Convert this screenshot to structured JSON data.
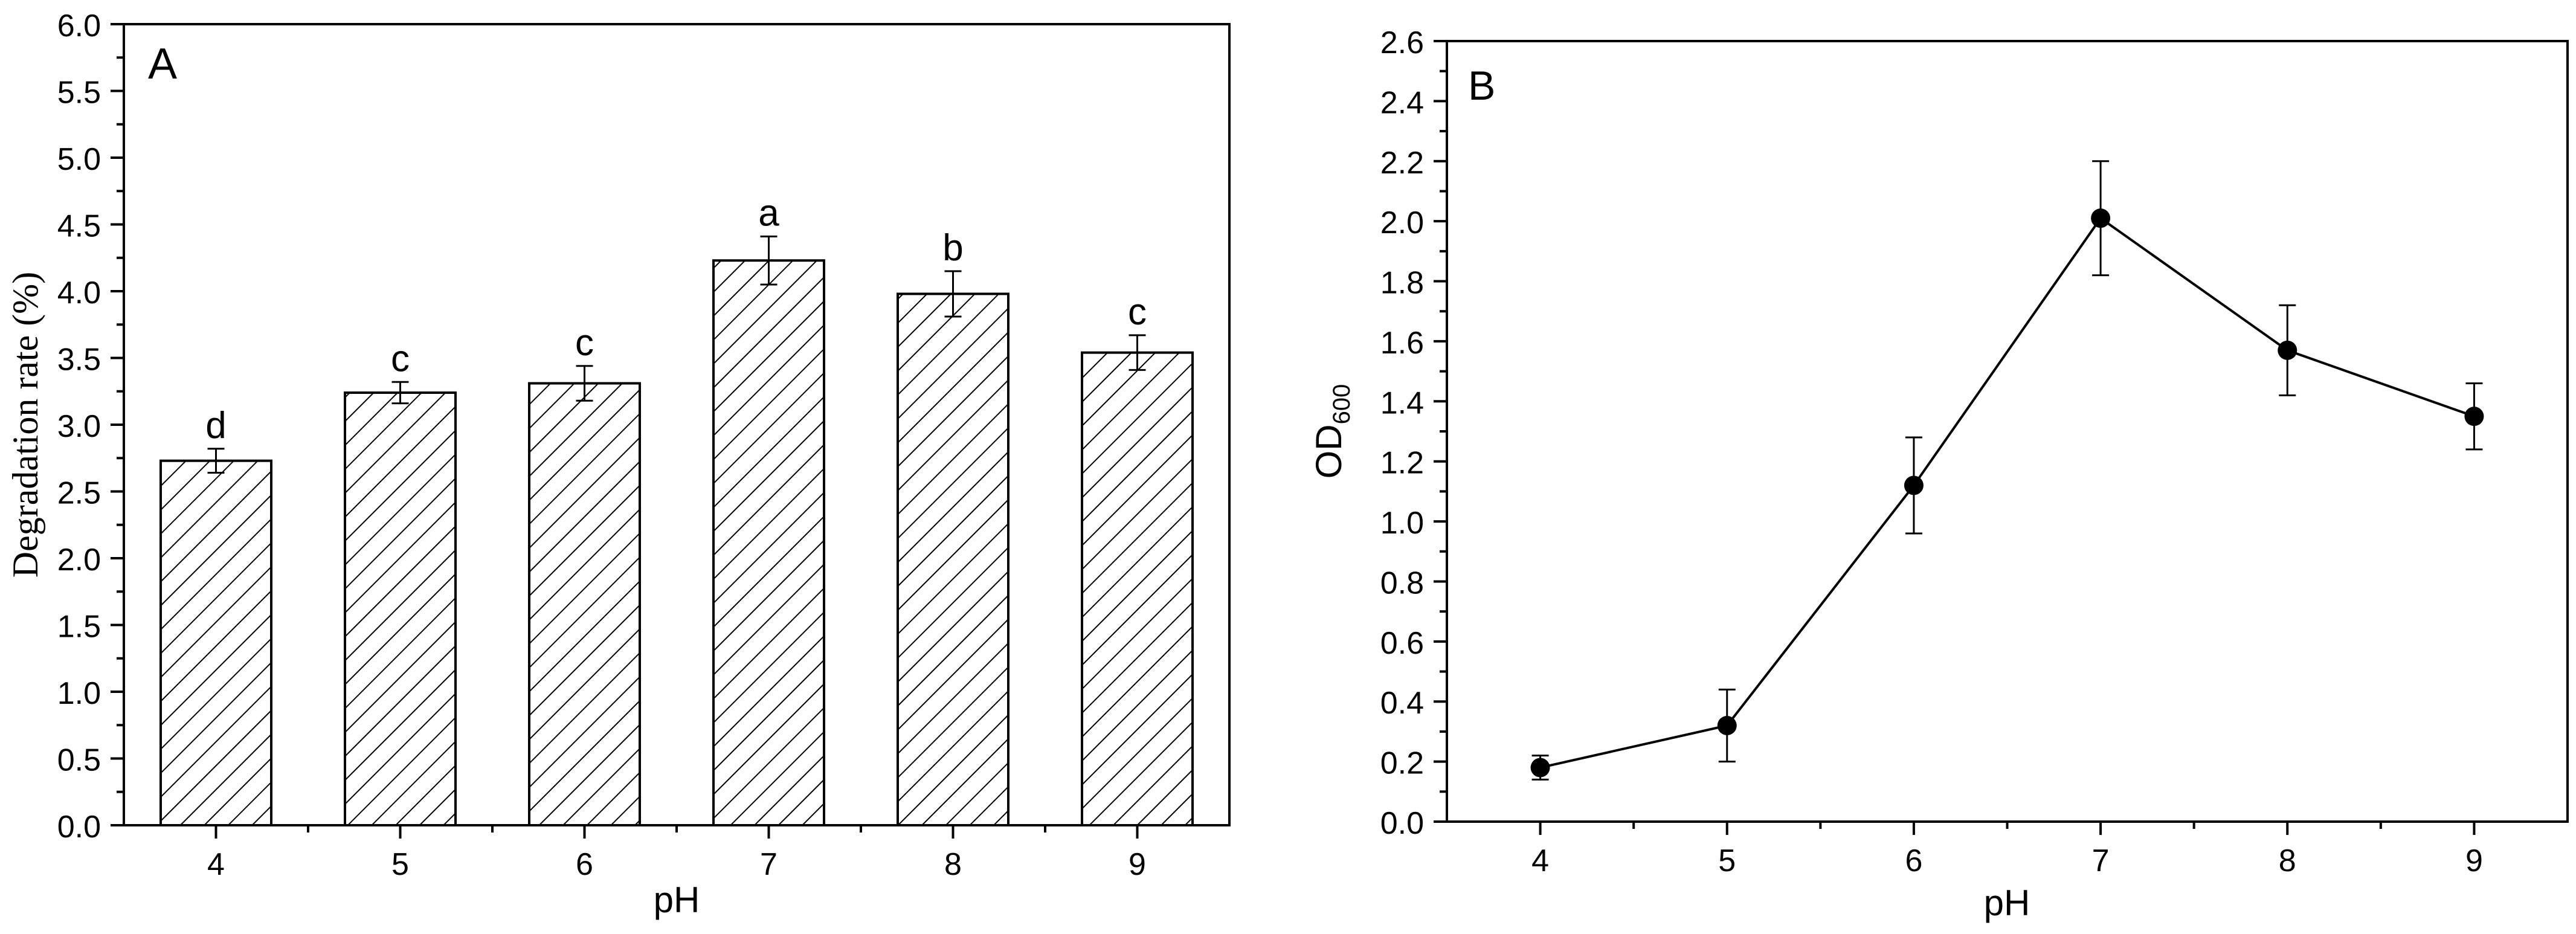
{
  "chart_data": [
    {
      "type": "bar",
      "panel_label": "A",
      "xlabel": "pH",
      "ylabel": "Degradation rate (%)",
      "categories": [
        "4",
        "5",
        "6",
        "7",
        "8",
        "9"
      ],
      "values": [
        2.73,
        3.24,
        3.31,
        4.23,
        3.98,
        3.54
      ],
      "errors": [
        0.09,
        0.08,
        0.13,
        0.18,
        0.17,
        0.13
      ],
      "significance_letters": [
        "d",
        "c",
        "c",
        "a",
        "b",
        "c"
      ],
      "ylim": [
        0,
        6.0
      ],
      "yticks": [
        "0.0",
        "0.5",
        "1.0",
        "1.5",
        "2.0",
        "2.5",
        "3.0",
        "3.5",
        "4.0",
        "4.5",
        "5.0",
        "5.5",
        "6.0"
      ],
      "bar_fill": "hatched",
      "grid": false
    },
    {
      "type": "line",
      "panel_label": "B",
      "xlabel": "pH",
      "ylabel_main": "OD",
      "ylabel_sub": "600",
      "x": [
        "4",
        "5",
        "6",
        "7",
        "8",
        "9"
      ],
      "values": [
        0.18,
        0.32,
        1.12,
        2.01,
        1.57,
        1.35
      ],
      "errors": [
        0.04,
        0.12,
        0.16,
        0.19,
        0.15,
        0.11
      ],
      "ylim": [
        0,
        2.6
      ],
      "yticks": [
        "0.0",
        "0.2",
        "0.4",
        "0.6",
        "0.8",
        "1.0",
        "1.2",
        "1.4",
        "1.6",
        "1.8",
        "2.0",
        "2.2",
        "2.4",
        "2.6"
      ],
      "marker": "filled-circle",
      "grid": false
    }
  ],
  "colors": {
    "axis": "#000000",
    "background": "#ffffff",
    "marker": "#000000"
  }
}
